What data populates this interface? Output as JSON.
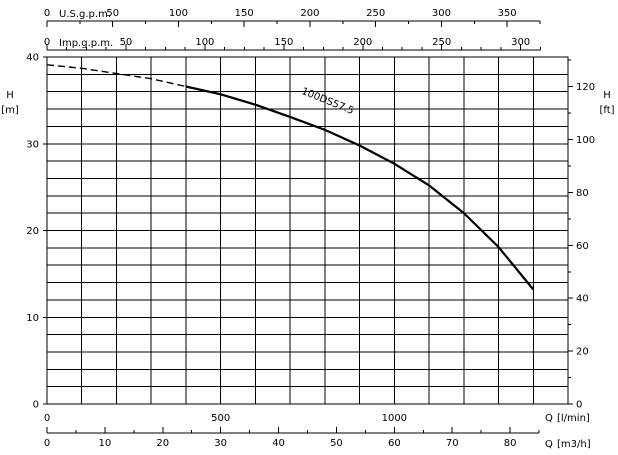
{
  "chart_data": {
    "type": "line",
    "title": "",
    "left_axis": {
      "label": "H",
      "unit": "[m]",
      "range": [
        0,
        40
      ],
      "ticks": [
        "0",
        "10",
        "20",
        "30",
        "40"
      ]
    },
    "right_axis": {
      "label": "H",
      "unit": "[ft]",
      "range": [
        0,
        131.2
      ],
      "ticks": [
        "0",
        "20",
        "40",
        "60",
        "80",
        "100",
        "120"
      ]
    },
    "bottom_axis_lpm": {
      "label": "Q",
      "unit": "[l/min]",
      "range": [
        0,
        1500
      ],
      "ticks": [
        "0",
        "500",
        "1000"
      ]
    },
    "bottom_axis_m3h": {
      "label": "Q",
      "unit": "[m3/h]",
      "range": [
        0,
        90
      ],
      "ticks": [
        "0",
        "10",
        "20",
        "30",
        "40",
        "50",
        "60",
        "70",
        "80"
      ]
    },
    "top_axis_usgpm": {
      "label": "U.S.g.p.m.",
      "range": [
        0,
        396.3
      ],
      "ticks": [
        "0",
        "50",
        "100",
        "150",
        "200",
        "250",
        "300",
        "350"
      ]
    },
    "top_axis_impgpm": {
      "label": "Imp.g.p.m.",
      "range": [
        0,
        330
      ],
      "ticks": [
        "0",
        "50",
        "100",
        "150",
        "200",
        "250",
        "300"
      ]
    },
    "grid": true,
    "series": [
      {
        "name": "100DS57.5",
        "x_unit": "l/min",
        "points": [
          [
            0,
            39.1
          ],
          [
            100,
            38.7
          ],
          [
            200,
            38.1
          ],
          [
            300,
            37.5
          ],
          [
            400,
            36.6
          ],
          [
            500,
            35.7
          ],
          [
            600,
            34.5
          ],
          [
            700,
            33.1
          ],
          [
            800,
            31.6
          ],
          [
            900,
            29.8
          ],
          [
            1000,
            27.7
          ],
          [
            1100,
            25.2
          ],
          [
            1200,
            22.0
          ],
          [
            1300,
            18.1
          ],
          [
            1400,
            13.2
          ]
        ],
        "dashed_below_x": 400
      }
    ]
  }
}
